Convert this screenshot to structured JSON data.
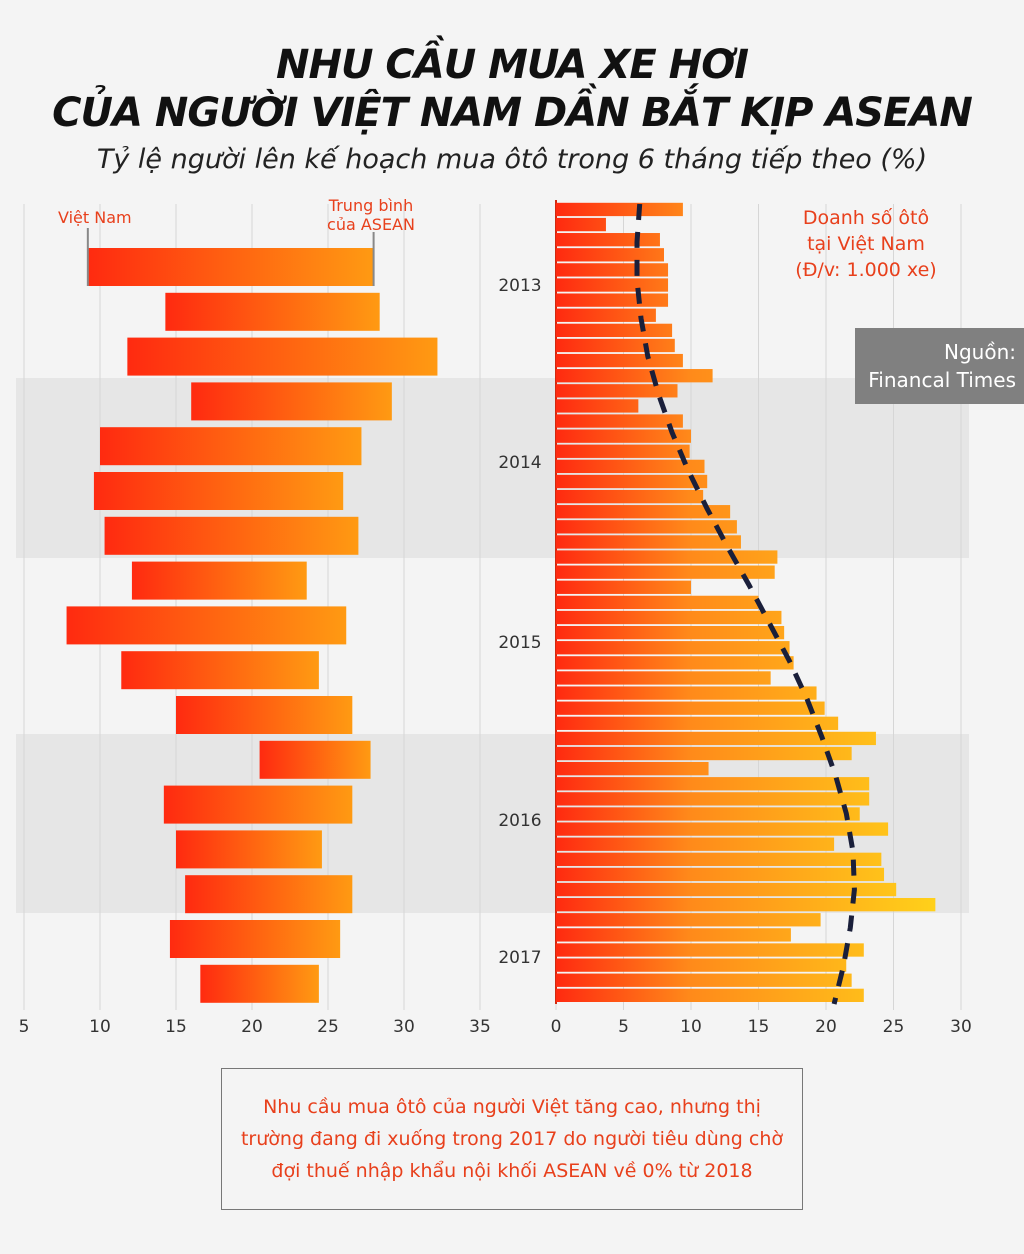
{
  "title_line1": "NHU CẦU MUA XE HƠI",
  "title_line2": "CỦA NGƯỜI VIỆT NAM DẦN BẮT KỊP ASEAN",
  "subtitle": "Tỷ lệ người lên kế hoạch mua ôtô trong 6 tháng tiếp theo (%)",
  "source": {
    "line1": "Nguồn:",
    "line2": "Financal Times"
  },
  "note": "Nhu cầu mua ôtô của người Việt tăng cao, nhưng thị trường đang đi xuống trong 2017 do người tiêu dùng chờ đợi thuế nhập khẩu nội khối ASEAN về 0% từ 2018",
  "colors": {
    "start": "#ff2a10",
    "mid": "#ff8a1a",
    "end": "#ffd21a",
    "trend": "#1a1f3a",
    "label_red": "#e8401c"
  },
  "chart_data": [
    {
      "type": "bar",
      "subtype": "floating-range",
      "title": "Tỷ lệ người lên kế hoạch mua ôtô trong 6 tháng tiếp theo (%)",
      "series_labels": {
        "start": "Việt Nam",
        "end_line1": "Trung bình",
        "end_line2": "của ASEAN"
      },
      "xlim": [
        5,
        35
      ],
      "xticks": [
        5,
        10,
        15,
        20,
        25,
        30,
        35
      ],
      "vietnam": [
        9.2,
        14.3,
        11.8,
        16.0,
        10.0,
        9.6,
        10.3,
        12.1,
        7.8,
        11.4,
        15.0,
        20.5,
        14.2,
        15.0,
        15.6,
        14.6,
        16.6
      ],
      "asean": [
        28.0,
        28.4,
        32.2,
        29.2,
        27.2,
        26.0,
        27.0,
        23.6,
        26.2,
        24.4,
        26.6,
        27.8,
        26.6,
        24.6,
        26.6,
        25.8,
        24.4
      ]
    },
    {
      "type": "bar",
      "orientation": "horizontal",
      "title": "Doanh số ôtô tại Việt Nam (Đ/v: 1.000 xe)",
      "legend_lines": [
        "Doanh số ôtô",
        "tại Việt Nam",
        "(Đ/v: 1.000 xe)"
      ],
      "xlim": [
        0,
        30
      ],
      "xticks": [
        0,
        5,
        10,
        15,
        20,
        25,
        30
      ],
      "year_labels": [
        "2013",
        "2014",
        "2015",
        "2016",
        "2017"
      ],
      "values": [
        9.4,
        3.7,
        7.7,
        8.0,
        8.3,
        8.3,
        8.3,
        7.4,
        8.6,
        8.8,
        9.4,
        11.6,
        9.0,
        6.1,
        9.4,
        10.0,
        9.9,
        11.0,
        11.2,
        10.9,
        12.9,
        13.4,
        13.7,
        16.4,
        16.2,
        10.0,
        15.0,
        16.7,
        16.9,
        17.3,
        17.6,
        15.9,
        19.3,
        19.9,
        20.9,
        23.7,
        21.9,
        11.3,
        23.2,
        23.2,
        22.5,
        24.6,
        20.6,
        24.1,
        24.3,
        25.2,
        28.1,
        19.6,
        17.4,
        22.8,
        21.5,
        21.9,
        22.8
      ],
      "trend": [
        6.2,
        6.0,
        6.0,
        6.3,
        6.8,
        7.6,
        8.6,
        9.8,
        11.2,
        12.7,
        14.3,
        15.8,
        17.3,
        18.6,
        19.7,
        20.7,
        21.5,
        22.0,
        22.1,
        21.8,
        21.3,
        20.6
      ]
    }
  ]
}
